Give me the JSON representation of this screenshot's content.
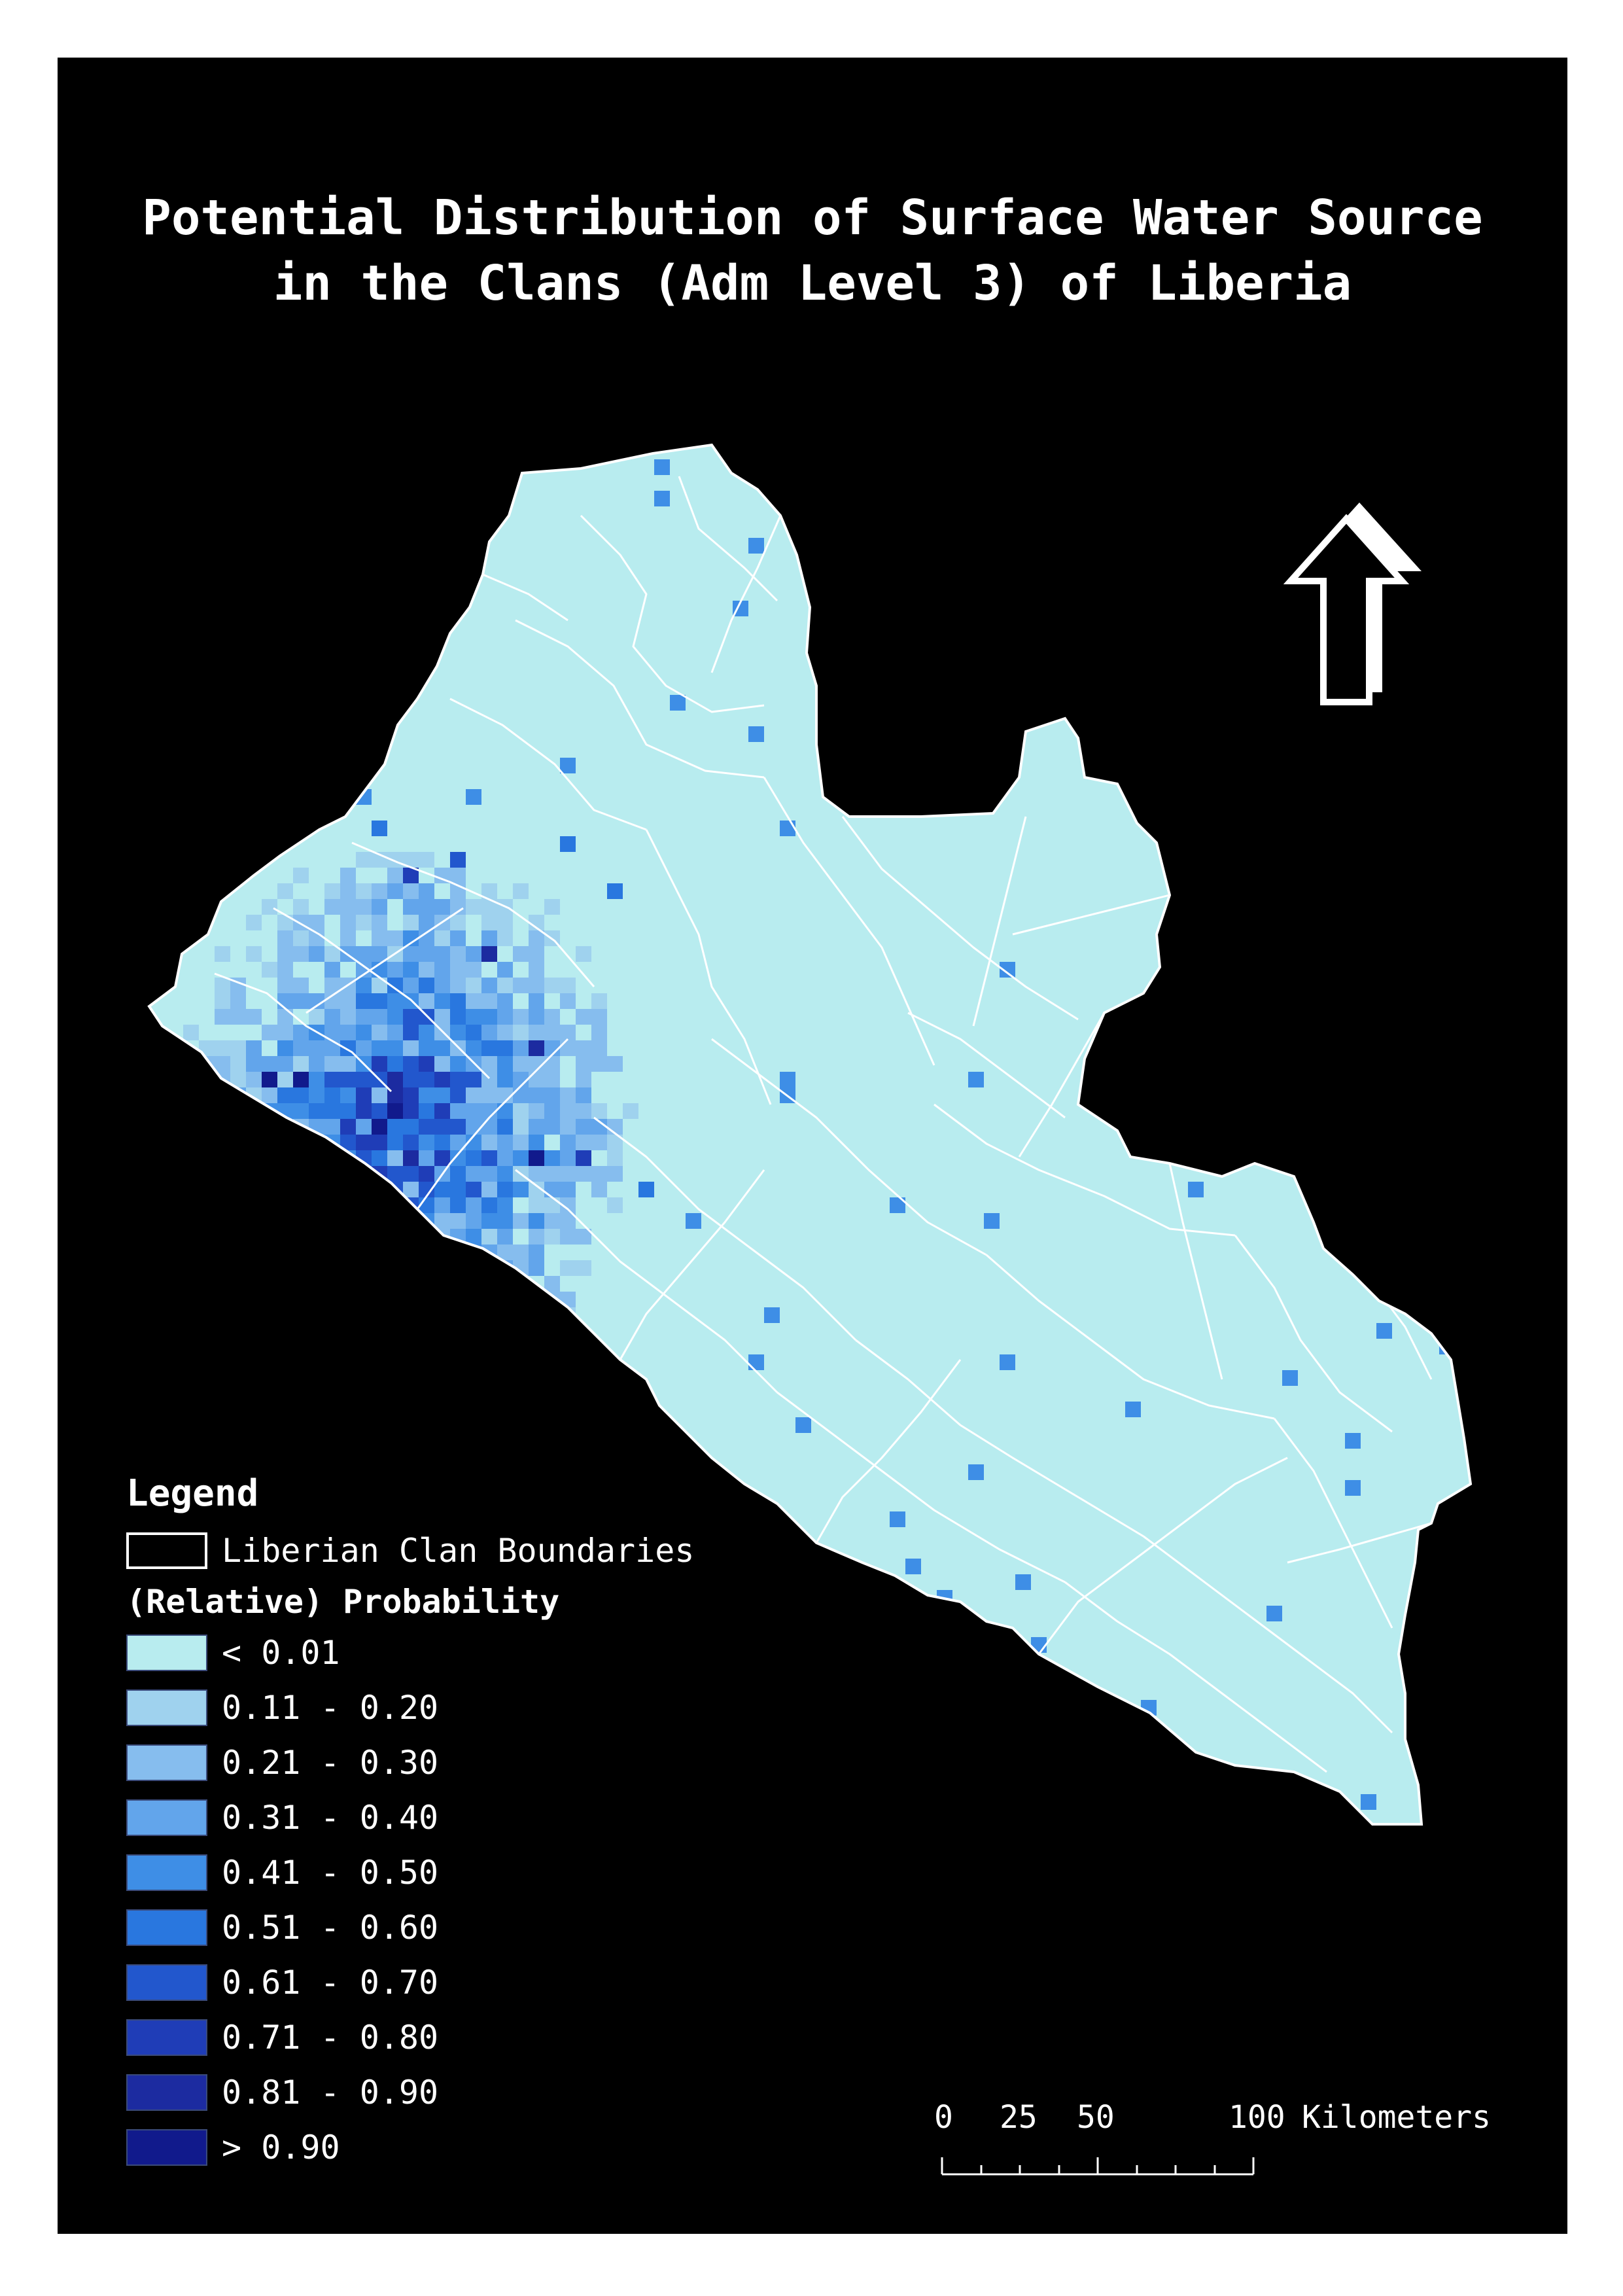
{
  "title": "Potential Distribution of Surface Water Source\nin the Clans (Adm Level 3) of Liberia",
  "north_arrow": {
    "icon": "north-arrow-icon"
  },
  "legend": {
    "title": "Legend",
    "boundaries_label": "Liberian Clan Boundaries",
    "probability_title": "(Relative) Probability",
    "classes": [
      {
        "label": "< 0.01",
        "color": "#b8ecef"
      },
      {
        "label": "0.11 - 0.20",
        "color": "#9fd2ee"
      },
      {
        "label": "0.21 - 0.30",
        "color": "#86bdee"
      },
      {
        "label": "0.31 - 0.40",
        "color": "#62a5eb"
      },
      {
        "label": "0.41 - 0.50",
        "color": "#3e8ee6"
      },
      {
        "label": "0.51 - 0.60",
        "color": "#2977df"
      },
      {
        "label": "0.61 - 0.70",
        "color": "#2257cd"
      },
      {
        "label": "0.71 - 0.80",
        "color": "#1f3db7"
      },
      {
        "label": "0.81 - 0.90",
        "color": "#1c2ba0"
      },
      {
        "label": "> 0.90",
        "color": "#111a8c"
      }
    ]
  },
  "scale_bar": {
    "labels": [
      "0",
      "25",
      "50",
      "100"
    ],
    "units": "Kilometers"
  },
  "colors": {
    "background": "#000000",
    "boundary": "#ffffff",
    "land_base": "#b8ecef"
  }
}
